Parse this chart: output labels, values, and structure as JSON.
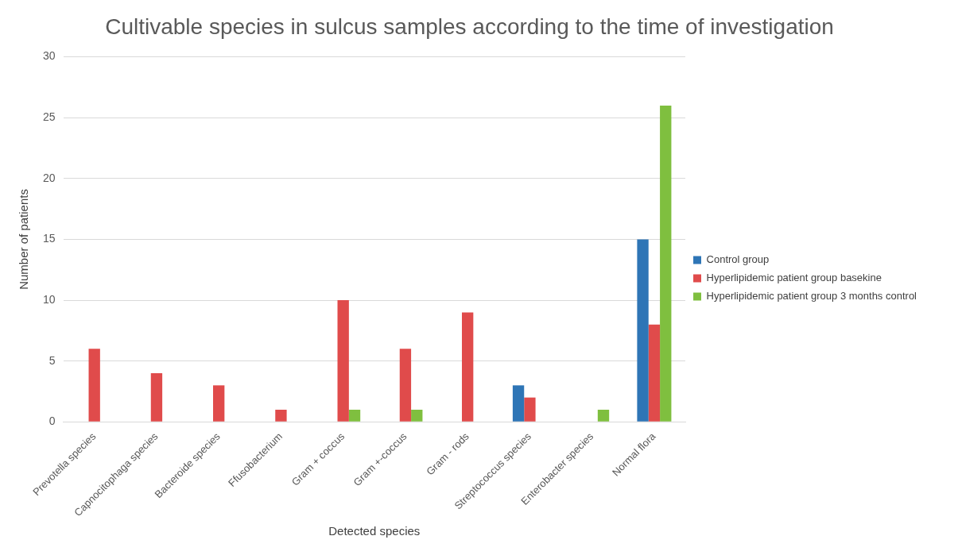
{
  "chart_data": {
    "type": "bar",
    "title": "Cultivable species in sulcus samples according to the time of investigation",
    "xlabel": "Detected species",
    "ylabel": "Number of patients",
    "categories": [
      "Prevotella species",
      "Capnocitophaga species",
      "Bacteroide species",
      "Ffusobacterium",
      "Gram + coccus",
      "Gram +-coccus",
      "Gram - rods",
      "Streptococcus species",
      "Enterobacter species",
      "Normal flora"
    ],
    "series": [
      {
        "name": "Control group",
        "color": "#2e75b6",
        "values": [
          0,
          0,
          0,
          0,
          0,
          0,
          0,
          3,
          0,
          15
        ]
      },
      {
        "name": "Hyperlipidemic patient group basekine",
        "color": "#e04b4b",
        "values": [
          6,
          4,
          3,
          1,
          10,
          6,
          9,
          2,
          0,
          8
        ]
      },
      {
        "name": "Hyperlipidemic patient group 3 months control",
        "color": "#7fbf3f",
        "values": [
          0,
          0,
          0,
          0,
          1,
          1,
          0,
          0,
          1,
          26
        ]
      }
    ],
    "ylim": [
      0,
      30
    ],
    "yticks": [
      0,
      5,
      10,
      15,
      20,
      25,
      30
    ],
    "grid": "y",
    "legend": "right"
  }
}
